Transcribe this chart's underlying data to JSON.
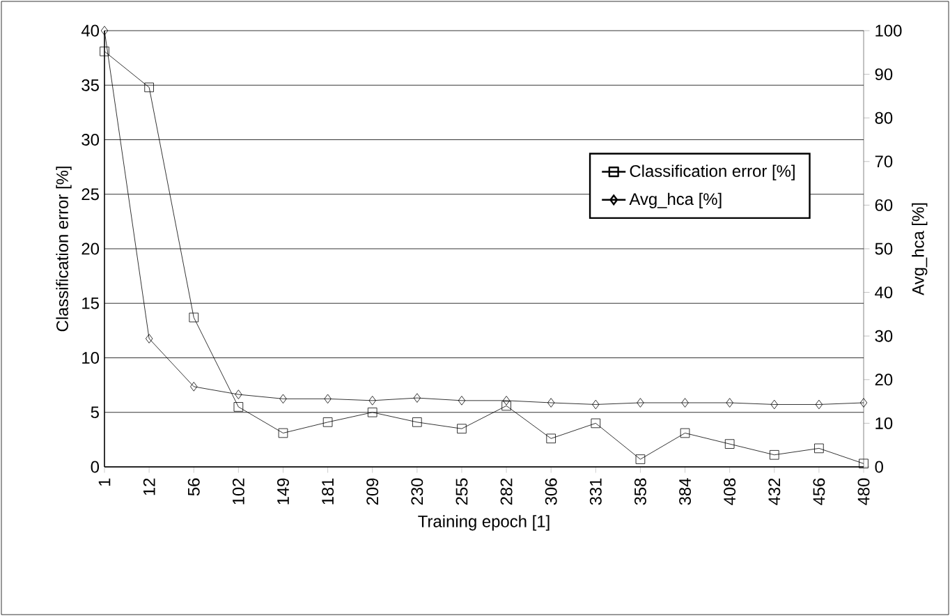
{
  "chart_data": {
    "type": "line",
    "xlabel": "Training epoch [1]",
    "ylabel": "Classification error [%]",
    "y2label": "Avg_hca [%]",
    "categories": [
      "1",
      "12",
      "56",
      "102",
      "149",
      "181",
      "209",
      "230",
      "255",
      "282",
      "306",
      "331",
      "358",
      "384",
      "408",
      "432",
      "456",
      "480"
    ],
    "series": [
      {
        "name": "Classification error [%]",
        "color": "#000000",
        "marker": "square",
        "values": [
          38.1,
          34.8,
          13.7,
          5.5,
          3.1,
          4.1,
          5.0,
          4.1,
          3.5,
          5.6,
          2.6,
          4.0,
          0.7,
          3.1,
          2.1,
          1.1,
          1.7,
          0.3
        ]
      },
      {
        "name": "Avg_hca [%]",
        "color": "#000000",
        "marker": "diamond",
        "axis": "y2",
        "values": [
          100,
          29.4,
          18.4,
          16.6,
          15.6,
          15.6,
          15.2,
          15.8,
          15.2,
          15.2,
          14.7,
          14.3,
          14.7,
          14.7,
          14.7,
          14.3,
          14.3,
          14.7
        ]
      }
    ],
    "ylim": [
      0,
      40
    ],
    "yticks": [
      0,
      5,
      10,
      15,
      20,
      25,
      30,
      35,
      40
    ],
    "y2lim": [
      0,
      100
    ],
    "y2ticks": [
      0,
      10,
      20,
      30,
      40,
      50,
      60,
      70,
      80,
      90,
      100
    ],
    "grid": "y",
    "legend": "top right",
    "line_style": "solid"
  }
}
